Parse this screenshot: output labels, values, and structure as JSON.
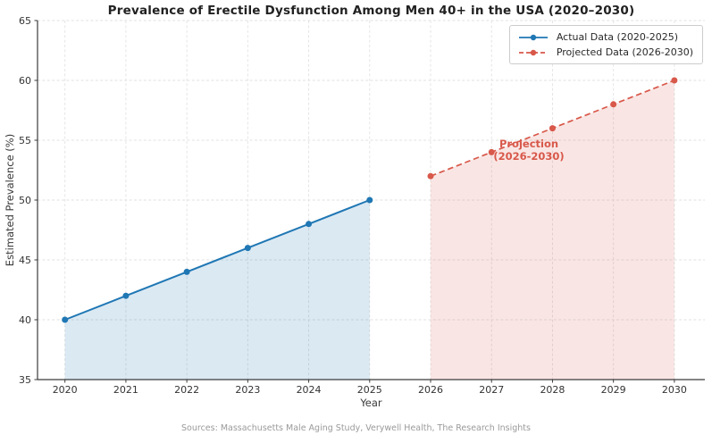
{
  "title": "Prevalence of Erectile Dysfunction Among Men 40+ in the USA (2020–2030)",
  "axes": {
    "xlabel": "Year",
    "ylabel": "Estimated Prevalence (%)"
  },
  "legend": {
    "items": [
      {
        "label": "Actual Data (2020-2025)",
        "color": "#1f77b4",
        "dashed": false
      },
      {
        "label": "Projected Data (2026-2030)",
        "color": "#d8584a",
        "dashed": true
      }
    ]
  },
  "annotation": {
    "line1": "Projection",
    "line2": "(2026-2030)"
  },
  "source": "Sources: Massachusetts Male Aging Study, Verywell Health, The Research Insights",
  "colors": {
    "actual_line": "#1f77b4",
    "actual_fill": "rgba(31,119,180,0.16)",
    "projected_line": "#d8584a",
    "projected_fill": "rgba(216,88,74,0.15)",
    "grid": "#e2e2e2",
    "spine": "#3b3b3b",
    "tick_label": "#333333"
  },
  "chart_data": {
    "type": "line",
    "title": "Prevalence of Erectile Dysfunction Among Men 40+ in the USA (2020–2030)",
    "xlabel": "Year",
    "ylabel": "Estimated Prevalence (%)",
    "xlim": [
      2019.55,
      2030.5
    ],
    "ylim": [
      35,
      65
    ],
    "x_ticks": [
      2020,
      2021,
      2022,
      2023,
      2024,
      2025,
      2026,
      2027,
      2028,
      2029,
      2030
    ],
    "y_ticks": [
      35,
      40,
      45,
      50,
      55,
      60,
      65
    ],
    "grid": true,
    "legend_position": "upper right",
    "series": [
      {
        "name": "Actual Data (2020-2025)",
        "x": [
          2020,
          2021,
          2022,
          2023,
          2024,
          2025
        ],
        "values": [
          40,
          42,
          44,
          46,
          48,
          50
        ],
        "line_style": "solid",
        "color": "#1f77b4",
        "fill_color": "rgba(31,119,180,0.16)",
        "area_fill": true
      },
      {
        "name": "Projected Data (2026-2030)",
        "x": [
          2026,
          2027,
          2028,
          2029,
          2030
        ],
        "values": [
          52,
          54,
          56,
          58,
          60
        ],
        "line_style": "dashed",
        "color": "#d8584a",
        "fill_color": "rgba(216,88,74,0.15)",
        "area_fill": true
      }
    ],
    "annotation": {
      "text": "Projection\n(2026-2030)",
      "anchor_x": 2027,
      "anchor_y": 54
    }
  }
}
